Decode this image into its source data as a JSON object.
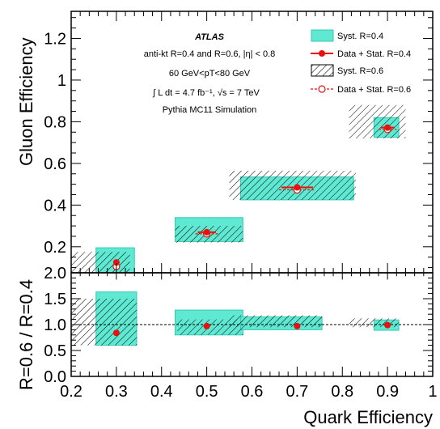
{
  "colors": {
    "syst_r04_fill": "#5fe8d2",
    "syst_r04_stroke": "#35c8b4",
    "data_r04": "#e8110f",
    "data_r06": "#e8110f",
    "hatch": "#000000",
    "ratio_line": "#000000"
  },
  "chart_data": [
    {
      "type": "scatter",
      "panel": "main",
      "xlabel": "Quark Efficiency",
      "ylabel": "Gluon Efficiency",
      "xlim": [
        0.2,
        1.0
      ],
      "ylim": [
        0.075,
        1.33
      ],
      "xticks": [
        "0.2",
        "0.3",
        "0.4",
        "0.5",
        "0.6",
        "0.7",
        "0.8",
        "0.9",
        "1"
      ],
      "yticks": [
        "0.2",
        "0.4",
        "0.6",
        "0.8",
        "1",
        "1.2"
      ],
      "yticks_values": [
        0.2,
        0.4,
        0.6,
        0.8,
        1.0,
        1.2
      ],
      "annotations": {
        "atlas": "ATLAS",
        "line1": "anti-kt R=0.4 and R=0.6, |η| < 0.8",
        "line2": "60 GeV<pT<80 GeV",
        "line3": "∫ L dt = 4.7 fb⁻¹, √s = 7 TeV",
        "line4": "Pythia MC11 Simulation"
      },
      "legend": {
        "placement": "top-right",
        "entries": [
          "Syst. R=0.4",
          "Data + Stat. R=0.4",
          "Syst. R=0.6",
          "Data + Stat. R=0.6"
        ]
      },
      "series": [
        {
          "name": "Data + Stat. R=0.4",
          "x": [
            0.3,
            0.5,
            0.7,
            0.9
          ],
          "y": [
            0.125,
            0.27,
            0.485,
            0.772
          ],
          "x_err": [
            0,
            0.02,
            0.035,
            0.015
          ],
          "y_err": [
            0.01,
            0.01,
            0.01,
            0.01
          ]
        },
        {
          "name": "Data + Stat. R=0.6",
          "x": [
            0.3,
            0.5,
            0.7,
            0.9
          ],
          "y": [
            0.105,
            0.262,
            0.473,
            0.763
          ],
          "x_err": [
            0,
            0.025,
            0.04,
            0.02
          ],
          "y_err": [
            0.01,
            0.01,
            0.01,
            0.01
          ]
        }
      ],
      "syst_boxes": {
        "r04": [
          {
            "x": [
              0.255,
              0.34
            ],
            "y": [
              0.075,
              0.195
            ]
          },
          {
            "x": [
              0.43,
              0.58
            ],
            "y": [
              0.225,
              0.34
            ]
          },
          {
            "x": [
              0.575,
              0.825
            ],
            "y": [
              0.425,
              0.535
            ]
          },
          {
            "x": [
              0.87,
              0.925
            ],
            "y": [
              0.725,
              0.82
            ]
          }
        ],
        "r06": [
          {
            "x": [
              0.2,
              0.33
            ],
            "y": [
              0.075,
              0.175
            ]
          },
          {
            "x": [
              0.43,
              0.58
            ],
            "y": [
              0.22,
              0.3
            ]
          },
          {
            "x": [
              0.55,
              0.83
            ],
            "y": [
              0.425,
              0.565
            ]
          },
          {
            "x": [
              0.815,
              0.94
            ],
            "y": [
              0.72,
              0.88
            ]
          }
        ]
      }
    },
    {
      "type": "scatter",
      "panel": "ratio",
      "xlabel": "Quark Efficiency",
      "ylabel": "R=0.6 / R=0.4",
      "xlim": [
        0.2,
        1.0
      ],
      "ylim": [
        0.0,
        2.0
      ],
      "xticks": [
        "0.2",
        "0.3",
        "0.4",
        "0.5",
        "0.6",
        "0.7",
        "0.8",
        "0.9",
        "1"
      ],
      "yticks": [
        "0.0",
        "0.5",
        "1.0",
        "1.5",
        "2.0"
      ],
      "yticks_values": [
        0.0,
        0.5,
        1.0,
        1.5,
        2.0
      ],
      "reference_line": 1.0,
      "points": {
        "x": [
          0.3,
          0.5,
          0.7,
          0.9
        ],
        "y": [
          0.84,
          0.97,
          0.97,
          0.99
        ]
      },
      "syst_boxes": {
        "r04": [
          {
            "x": [
              0.255,
              0.345
            ],
            "y": [
              0.6,
              1.63
            ]
          },
          {
            "x": [
              0.43,
              0.58
            ],
            "y": [
              0.8,
              1.28
            ]
          },
          {
            "x": [
              0.575,
              0.755
            ],
            "y": [
              0.9,
              1.15
            ]
          },
          {
            "x": [
              0.87,
              0.925
            ],
            "y": [
              0.89,
              1.09
            ]
          }
        ],
        "r06": [
          {
            "x": [
              0.2,
              0.345
            ],
            "y": [
              0.6,
              1.5
            ]
          },
          {
            "x": [
              0.435,
              0.58
            ],
            "y": [
              0.8,
              1.1
            ]
          },
          {
            "x": [
              0.55,
              0.755
            ],
            "y": [
              0.95,
              1.18
            ]
          },
          {
            "x": [
              0.815,
              0.925
            ],
            "y": [
              0.95,
              1.12
            ]
          }
        ]
      }
    }
  ]
}
